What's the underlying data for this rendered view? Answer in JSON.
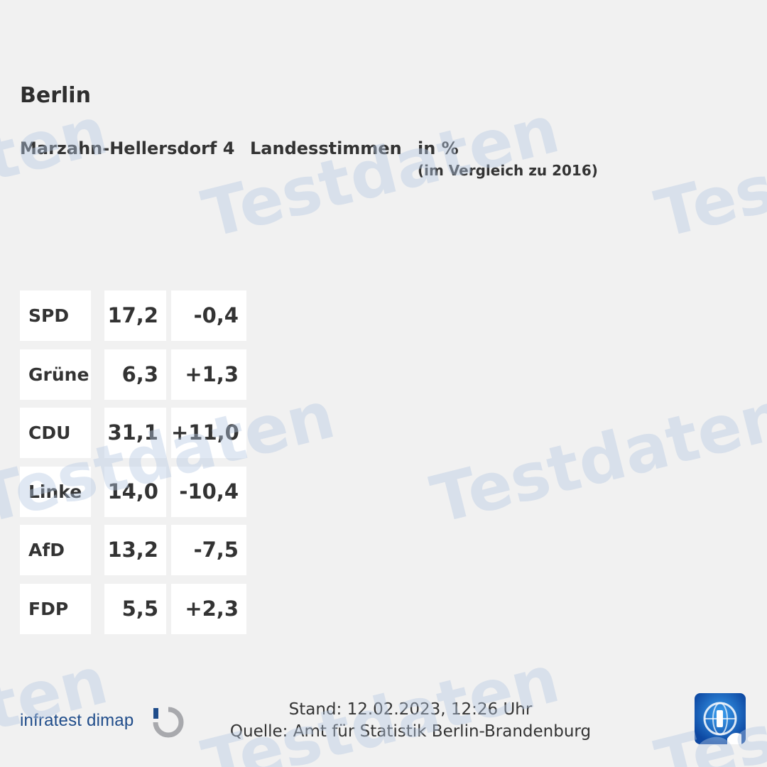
{
  "header": {
    "region": "Berlin",
    "district": "Marzahn-Hellersdorf 4",
    "vote_type": "Landesstimmen",
    "unit": "in %",
    "comparison": "(im Vergleich zu 2016)"
  },
  "results": [
    {
      "party": "SPD",
      "share": "17,2",
      "diff": "-0,4"
    },
    {
      "party": "Grüne",
      "share": "6,3",
      "diff": "+1,3"
    },
    {
      "party": "CDU",
      "share": "31,1",
      "diff": "+11,0"
    },
    {
      "party": "Linke",
      "share": "14,0",
      "diff": "-10,4"
    },
    {
      "party": "AfD",
      "share": "13,2",
      "diff": "-7,5"
    },
    {
      "party": "FDP",
      "share": "5,5",
      "diff": "+2,3"
    }
  ],
  "footer": {
    "brand": "infratest dimap",
    "status": "Stand: 12.02.2023, 12:26 Uhr",
    "source": "Quelle: Amt für Statistik Berlin-Brandenburg"
  },
  "watermark": {
    "text": "Testdaten",
    "color": "#b4c8e2"
  },
  "colors": {
    "background": "#f1f1f1",
    "cell": "#ffffff",
    "text": "#333333",
    "brand": "#1f4c8a",
    "brand_mark": "#a8a9ad",
    "tv_logo": "#1565c0"
  }
}
